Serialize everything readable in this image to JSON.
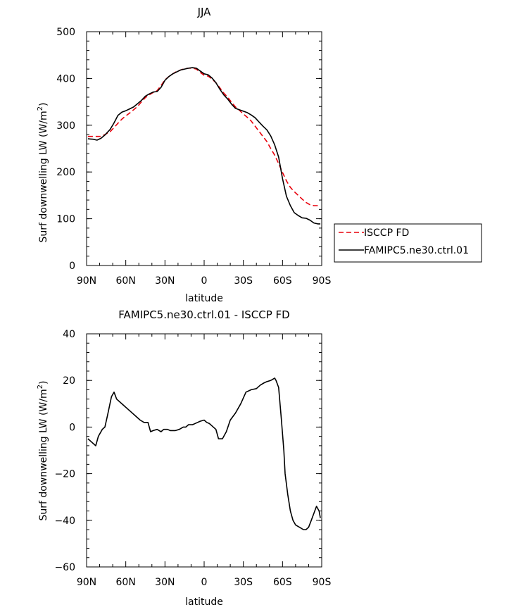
{
  "chart_data": [
    {
      "type": "line",
      "title": "JJA",
      "xlabel": "latitude",
      "ylabel": "Surf downwelling LW (W/m²)",
      "ylabel_main": "Surf downwelling LW (W/m",
      "ylabel_sup": "2",
      "ylabel_close": ")",
      "xlim": [
        90,
        -90
      ],
      "ylim": [
        0,
        500
      ],
      "xticks": [
        90,
        60,
        30,
        0,
        -30,
        -60,
        -90
      ],
      "xticklabels": [
        "90N",
        "60N",
        "30N",
        "0",
        "30S",
        "60S",
        "90S"
      ],
      "yticks": [
        0,
        100,
        200,
        300,
        400,
        500
      ],
      "yticklabels": [
        "0",
        "100",
        "200",
        "300",
        "400",
        "500"
      ],
      "legend_placement": "right",
      "series": [
        {
          "name": "ISCCP FD",
          "color": "#e8000b",
          "style": "dashed",
          "x": [
            89,
            85,
            82,
            79,
            76,
            72,
            69,
            66,
            63,
            60,
            57,
            54,
            51,
            48,
            45,
            42,
            39,
            36,
            33,
            30,
            27,
            24,
            21,
            18,
            15,
            12,
            9,
            6,
            3,
            0,
            -3,
            -6,
            -9,
            -12,
            -15,
            -18,
            -21,
            -24,
            -27,
            -30,
            -33,
            -36,
            -39,
            -42,
            -45,
            -48,
            -51,
            -54,
            -57,
            -60,
            -63,
            -66,
            -69,
            -72,
            -75,
            -78,
            -81,
            -84,
            -87,
            -89
          ],
          "y": [
            276,
            276,
            276,
            276,
            280,
            286,
            295,
            304,
            313,
            320,
            326,
            333,
            340,
            350,
            359,
            365,
            370,
            374,
            385,
            397,
            404,
            410,
            415,
            418,
            421,
            422,
            422,
            420,
            413,
            407,
            405,
            399,
            391,
            380,
            369,
            360,
            349,
            339,
            332,
            324,
            317,
            309,
            298,
            287,
            276,
            265,
            250,
            236,
            218,
            199,
            181,
            167,
            158,
            150,
            142,
            135,
            130,
            128,
            128,
            128
          ]
        },
        {
          "name": "FAMIPC5.ne30.ctrl.01",
          "color": "#000000",
          "style": "solid",
          "x": [
            89,
            85,
            82,
            79,
            76,
            72,
            69,
            66,
            63,
            60,
            57,
            54,
            51,
            48,
            45,
            42,
            39,
            36,
            33,
            30,
            27,
            24,
            21,
            18,
            15,
            12,
            9,
            6,
            3,
            0,
            -3,
            -6,
            -9,
            -12,
            -15,
            -18,
            -21,
            -24,
            -27,
            -30,
            -33,
            -36,
            -39,
            -42,
            -45,
            -48,
            -51,
            -54,
            -57,
            -60,
            -63,
            -66,
            -69,
            -72,
            -75,
            -78,
            -81,
            -84,
            -87,
            -89
          ],
          "y": [
            271,
            270,
            268,
            272,
            279,
            291,
            305,
            321,
            328,
            331,
            335,
            339,
            346,
            353,
            362,
            367,
            371,
            372,
            381,
            396,
            404,
            410,
            414,
            418,
            420,
            422,
            423,
            422,
            416,
            410,
            408,
            401,
            391,
            377,
            365,
            356,
            345,
            336,
            333,
            330,
            327,
            322,
            316,
            307,
            298,
            290,
            277,
            258,
            232,
            186,
            148,
            128,
            113,
            107,
            102,
            101,
            97,
            91,
            89,
            89
          ]
        }
      ]
    },
    {
      "type": "line",
      "title": "FAMIPC5.ne30.ctrl.01 - ISCCP FD",
      "xlabel": "latitude",
      "ylabel": "Surf downwelling LW (W/m²)",
      "ylabel_main": "Surf downwelling LW (W/m",
      "ylabel_sup": "2",
      "ylabel_close": ")",
      "xlim": [
        90,
        -90
      ],
      "ylim": [
        -60,
        40
      ],
      "xticks": [
        90,
        60,
        30,
        0,
        -30,
        -60,
        -90
      ],
      "xticklabels": [
        "90N",
        "60N",
        "30N",
        "0",
        "30S",
        "60S",
        "90S"
      ],
      "yticks": [
        -60,
        -40,
        -20,
        0,
        20,
        40
      ],
      "yticklabels": [
        "−60",
        "−40",
        "−20",
        "0",
        "20",
        "40"
      ],
      "series": [
        {
          "color": "#000000",
          "style": "solid",
          "x": [
            89,
            87,
            85,
            83,
            81,
            78,
            76,
            74,
            71,
            69,
            67,
            65,
            61,
            57,
            53,
            49,
            46,
            43,
            41,
            39,
            36,
            33,
            31,
            28,
            26,
            22,
            19,
            16,
            14,
            12,
            9,
            5,
            3,
            0,
            -2,
            -4,
            -6,
            -9,
            -11,
            -14,
            -17,
            -20,
            -24,
            -28,
            -32,
            -36,
            -40,
            -43,
            -46,
            -48,
            -51,
            -54,
            -55,
            -57,
            -59,
            -61,
            -62,
            -64,
            -66,
            -68,
            -70,
            -73,
            -76,
            -78,
            -80,
            -82,
            -84,
            -86,
            -88,
            -89
          ],
          "y": [
            -5,
            -6,
            -7,
            -8,
            -4,
            -1,
            0,
            5,
            13,
            15,
            12,
            11,
            9,
            7,
            5,
            3,
            2,
            2,
            -2,
            -1.5,
            -1,
            -2,
            -1,
            -1,
            -1.5,
            -1.5,
            -1,
            0,
            0,
            1,
            1,
            2,
            2.5,
            3,
            2,
            1.5,
            0.5,
            -1,
            -5,
            -5,
            -2,
            3,
            6,
            10,
            15,
            16,
            16.5,
            18,
            19,
            19.5,
            20,
            21,
            20,
            17,
            4,
            -10,
            -20,
            -29,
            -36,
            -40,
            -42,
            -43,
            -44,
            -44,
            -43,
            -40,
            -37,
            -34,
            -36,
            -39
          ]
        }
      ]
    }
  ]
}
